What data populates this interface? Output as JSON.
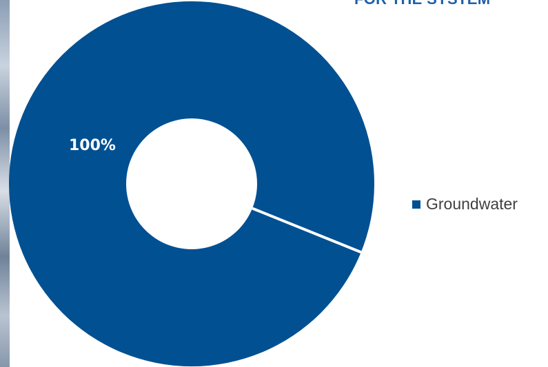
{
  "chart_data": {
    "type": "pie",
    "title": "FOR THE SYSTEM",
    "categories": [
      "Groundwater"
    ],
    "values": [
      100
    ],
    "data_labels": [
      "100%"
    ],
    "colors": [
      "#005092"
    ],
    "donut": true,
    "legend_position": "right"
  }
}
